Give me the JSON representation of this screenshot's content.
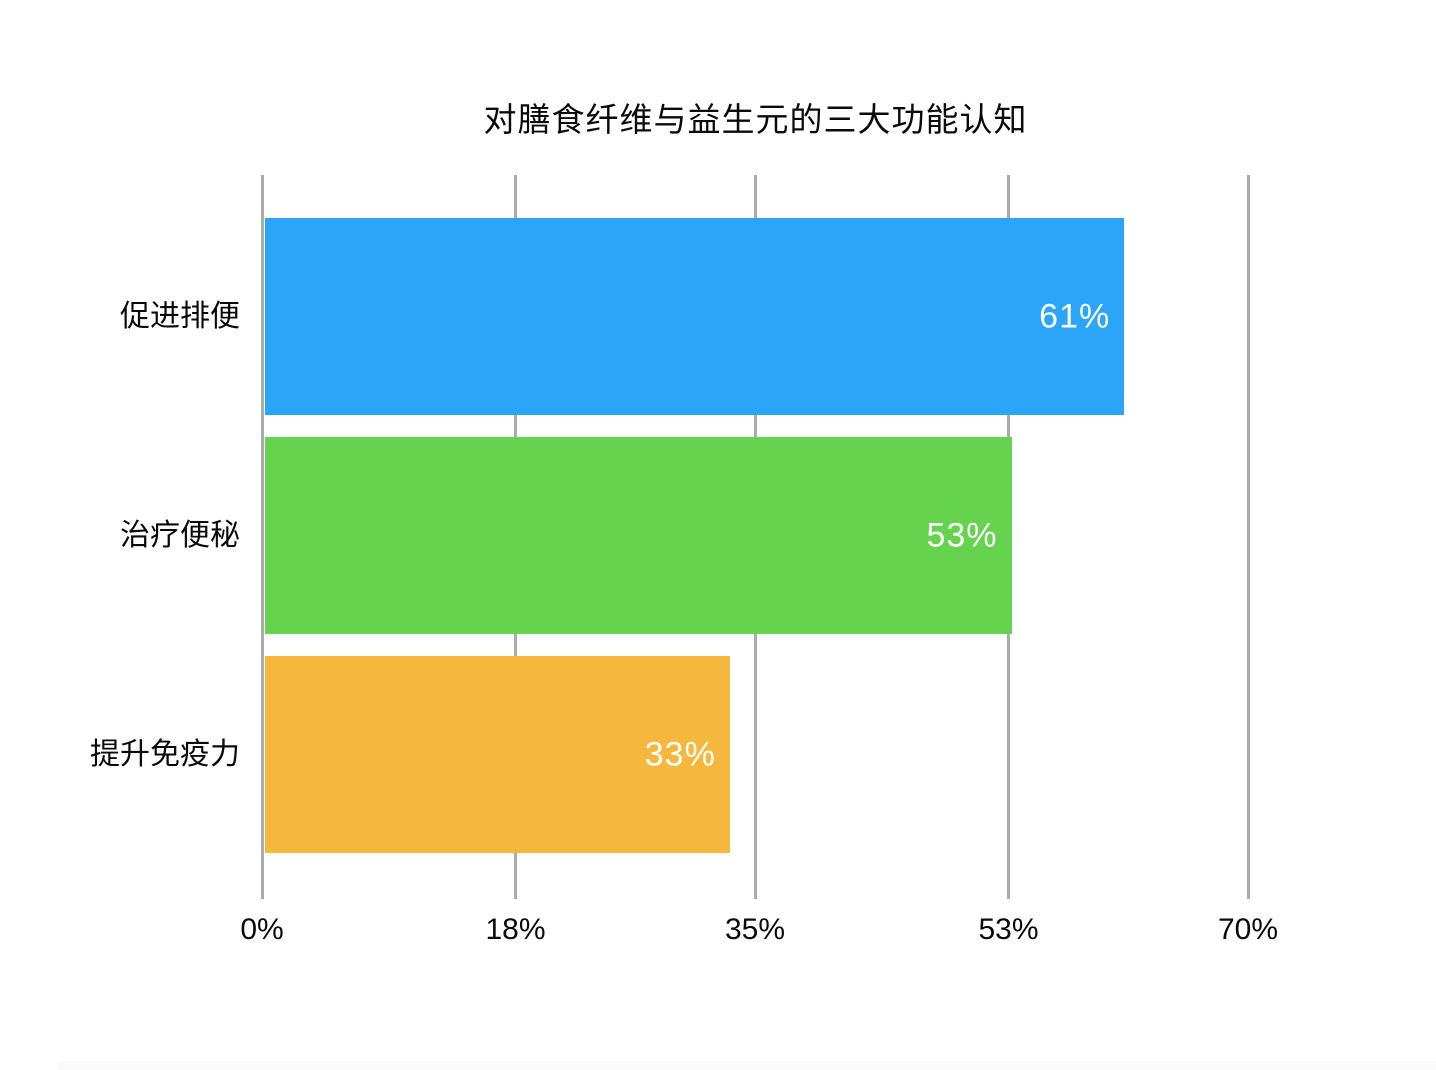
{
  "page": {
    "background": "#ffffff"
  },
  "chart_data": {
    "type": "bar",
    "orientation": "horizontal",
    "title": "对膳食纤维与益生元的三大功能认知",
    "categories": [
      "促进排便",
      "治疗便秘",
      "提升免疫力"
    ],
    "values": [
      61,
      53,
      33
    ],
    "value_labels": [
      "61%",
      "53%",
      "33%"
    ],
    "bar_colors": [
      "#2BA5F7",
      "#66D34F",
      "#F5B83D"
    ],
    "x_ticks": [
      {
        "value": 0,
        "label": "0%"
      },
      {
        "value": 18,
        "label": "18%"
      },
      {
        "value": 35,
        "label": "35%"
      },
      {
        "value": 53,
        "label": "53%"
      },
      {
        "value": 70,
        "label": "70%"
      }
    ],
    "xlim": [
      0,
      70
    ],
    "xlabel": "",
    "ylabel": "",
    "legend": "none",
    "grid": "vertical",
    "gridline_color": "#ABABAB",
    "value_label_color": "#FFFFFF",
    "text_color": "#0A0A0A"
  }
}
